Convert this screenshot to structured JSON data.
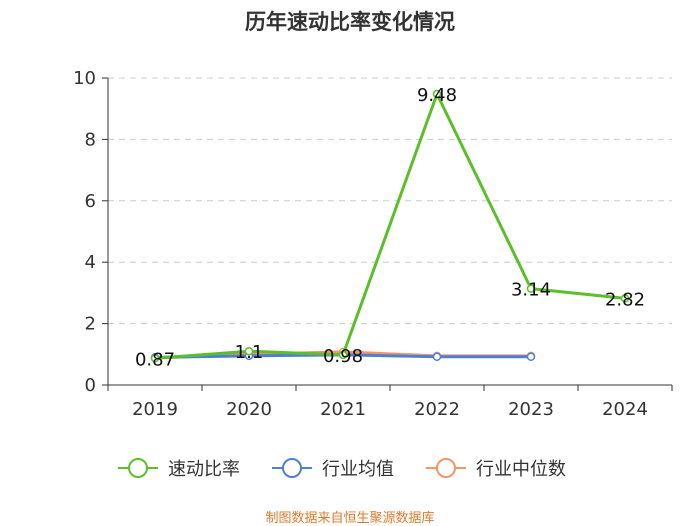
{
  "title": "历年速动比率变化情况",
  "source": "制图数据来自恒生聚源数据库",
  "chart_data": {
    "type": "line",
    "title": "历年速动比率变化情况",
    "categories": [
      "2019",
      "2020",
      "2021",
      "2022",
      "2023",
      "2024"
    ],
    "ylim": [
      0,
      10
    ],
    "yticks": [
      0,
      2,
      4,
      6,
      8,
      10
    ],
    "grid": true,
    "legend_position": "bottom",
    "series": [
      {
        "name": "速动比率",
        "color": "#5cbf2a",
        "values": [
          0.87,
          1.1,
          0.98,
          9.48,
          3.14,
          2.82
        ],
        "labels": [
          "0.87",
          "1.1",
          "0.98",
          "9.48",
          "3.14",
          "2.82"
        ],
        "show_labels": true
      },
      {
        "name": "行业均值",
        "color": "#4e7fd6",
        "values": [
          0.9,
          0.95,
          0.98,
          0.92,
          0.92,
          null
        ],
        "show_labels": false
      },
      {
        "name": "行业中位数",
        "color": "#f4956b",
        "values": [
          0.88,
          1.0,
          1.08,
          0.95,
          0.95,
          null
        ],
        "show_labels": false
      }
    ]
  }
}
